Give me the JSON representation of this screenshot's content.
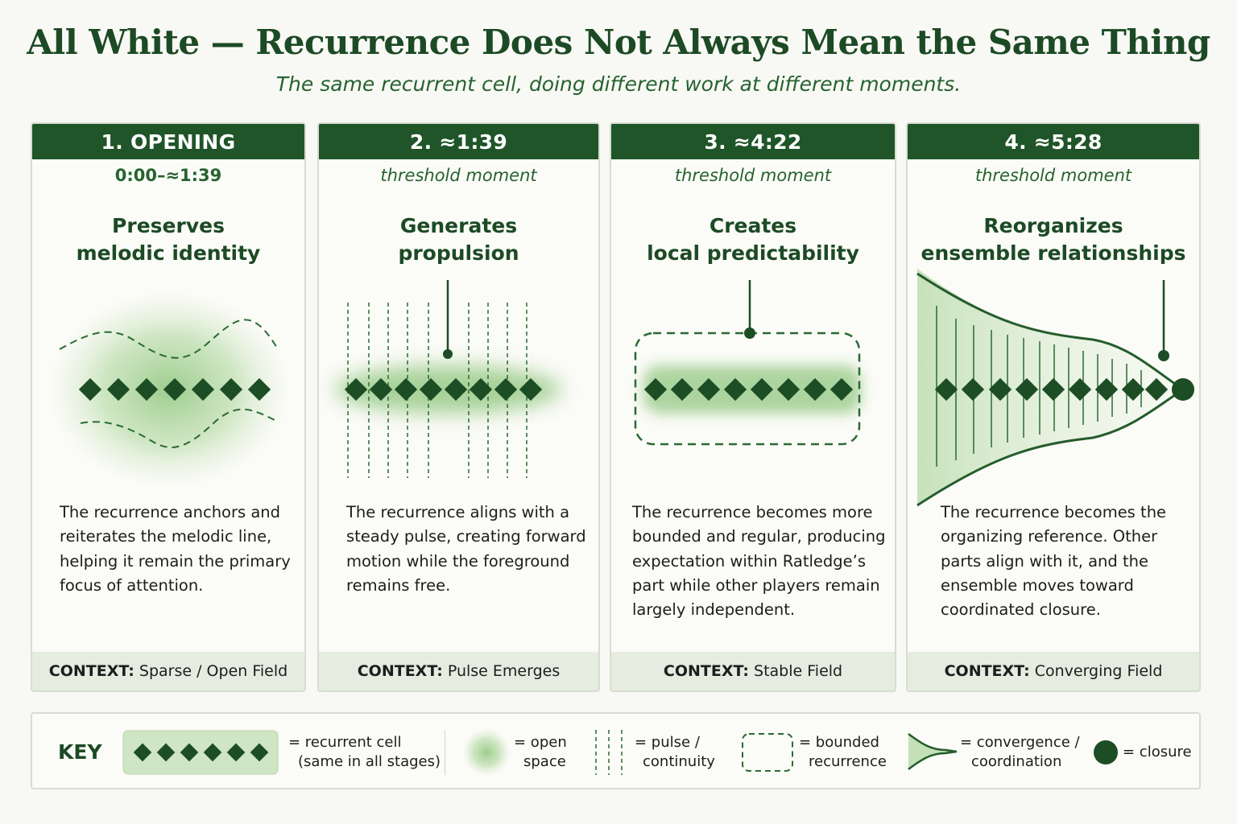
{
  "title": "All White — Recurrence Does Not Always Mean the Same Thing",
  "subtitle": "The same recurrent cell, doing different work at different moments.",
  "panels": [
    {
      "header": "1. OPENING",
      "sub": "0:00–≈1:39",
      "role_line1": "Preserves",
      "role_line2": "melodic identity",
      "description": [
        "The recurrence anchors and",
        "reiterates the melodic line,",
        "helping it remain the primary",
        "focus of attention."
      ],
      "context_label": "CONTEXT:",
      "context_value": "Sparse / Open Field"
    },
    {
      "header": "2. ≈1:39",
      "sub": "threshold moment",
      "role_line1": "Generates",
      "role_line2": "propulsion",
      "description": [
        "The recurrence aligns with a",
        "steady pulse, creating forward",
        "motion while the foreground",
        "remains free."
      ],
      "context_label": "CONTEXT:",
      "context_value": "Pulse Emerges"
    },
    {
      "header": "3. ≈4:22",
      "sub": "threshold moment",
      "role_line1": "Creates",
      "role_line2": "local predictability",
      "description": [
        "The recurrence becomes more",
        "bounded and regular, producing",
        "expectation within Ratledge’s",
        "part while other players remain",
        "largely independent."
      ],
      "context_label": "CONTEXT:",
      "context_value": "Stable Field"
    },
    {
      "header": "4. ≈5:28",
      "sub": "threshold moment",
      "role_line1": "Reorganizes",
      "role_line2": "ensemble relationships",
      "description": [
        "The recurrence becomes the",
        "organizing reference. Other",
        "parts align with it, and the",
        "ensemble moves toward",
        "coordinated closure."
      ],
      "context_label": "CONTEXT:",
      "context_value": "Converging Field"
    }
  ],
  "key": {
    "title": "KEY",
    "cell_line1": "= recurrent cell",
    "cell_line2": "(same in all stages)",
    "open_line1": "= open",
    "open_line2": "space",
    "pulse_line1": "= pulse /",
    "pulse_line2": "continuity",
    "bounded_line1": "= bounded",
    "bounded_line2": "recurrence",
    "convergence_line1": "= convergence /",
    "convergence_line2": "coordination",
    "closure": "= closure"
  },
  "colors": {
    "dark_green": "#1f5528",
    "diamond": "#1d4d25",
    "glow": "#8cc47a",
    "context_bg": "#e6ecdf"
  },
  "icons": [
    "diamond-icon",
    "glow-icon",
    "pulse-lines-icon",
    "dashed-box-icon",
    "convergence-icon",
    "closure-dot-icon"
  ]
}
